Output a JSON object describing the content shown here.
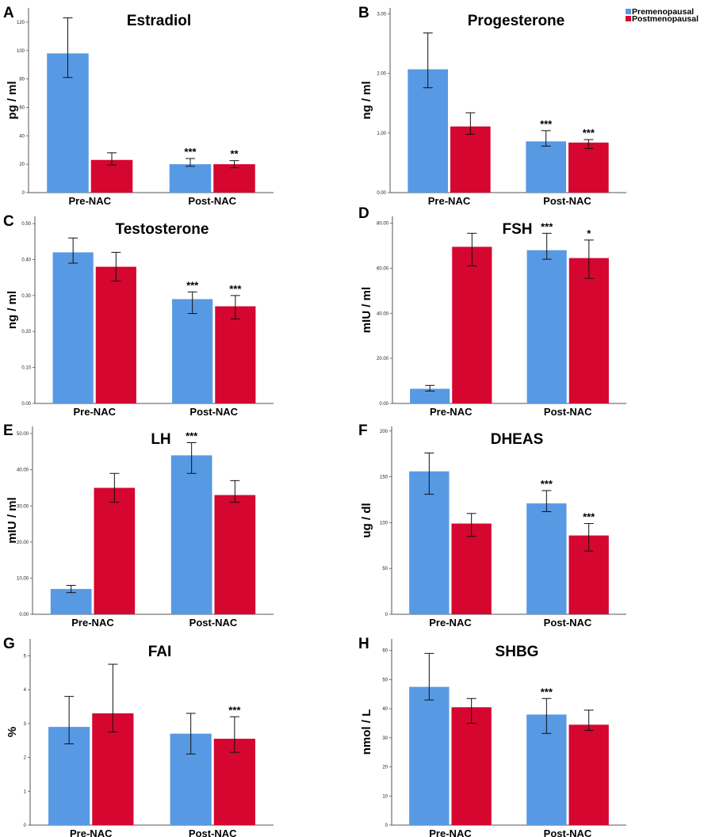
{
  "legend": {
    "entries": [
      {
        "label": "Premenopausal",
        "color": "#5899e4"
      },
      {
        "label": "Postmenopausal",
        "color": "#d5062f"
      }
    ]
  },
  "chart_data": [
    {
      "panel": "A",
      "type": "bar",
      "title": "Estradiol",
      "ylabel": "pg / ml",
      "categories": [
        "Pre-NAC",
        "Post-NAC"
      ],
      "ylim": [
        0,
        130
      ],
      "ticks": [
        "0",
        "20",
        "40",
        "60",
        "80",
        "100",
        "120"
      ],
      "tick_values": [
        0,
        20,
        40,
        60,
        80,
        100,
        120
      ],
      "series": [
        {
          "name": "Premenopausal",
          "values": [
            98,
            20
          ],
          "err_low": [
            81,
            18.5
          ],
          "err_high": [
            123,
            24
          ],
          "sig": [
            "",
            "***"
          ]
        },
        {
          "name": "Postmenopausal",
          "values": [
            23,
            20
          ],
          "err_low": [
            19.5,
            17.5
          ],
          "err_high": [
            28,
            22.5
          ],
          "sig": [
            "",
            "**"
          ]
        }
      ]
    },
    {
      "panel": "B",
      "type": "bar",
      "title": "Progesterone",
      "ylabel": "ng / ml",
      "categories": [
        "Pre-NAC",
        "Post-NAC"
      ],
      "ylim": [
        0,
        3.1
      ],
      "ticks": [
        "0.00",
        "1.00",
        "2.00",
        "3.00"
      ],
      "tick_values": [
        0,
        1,
        2,
        3
      ],
      "series": [
        {
          "name": "Premenopausal",
          "values": [
            2.07,
            0.86
          ],
          "err_low": [
            1.76,
            0.78
          ],
          "err_high": [
            2.68,
            1.04
          ],
          "sig": [
            "",
            "***"
          ]
        },
        {
          "name": "Postmenopausal",
          "values": [
            1.11,
            0.84
          ],
          "err_low": [
            0.98,
            0.74
          ],
          "err_high": [
            1.34,
            0.89
          ],
          "sig": [
            "",
            "***"
          ]
        }
      ]
    },
    {
      "panel": "C",
      "type": "bar",
      "title": "Testosterone",
      "ylabel": "ng / ml",
      "categories": [
        "Pre-NAC",
        "Post-NAC"
      ],
      "ylim": [
        0,
        0.52
      ],
      "ticks": [
        "0.00",
        "0.10",
        "0.20",
        "0.30",
        "0.40",
        "0.50"
      ],
      "tick_values": [
        0,
        0.1,
        0.2,
        0.3,
        0.4,
        0.5
      ],
      "series": [
        {
          "name": "Premenopausal",
          "values": [
            0.42,
            0.29
          ],
          "err_low": [
            0.39,
            0.25
          ],
          "err_high": [
            0.46,
            0.31
          ],
          "sig": [
            "",
            "***"
          ]
        },
        {
          "name": "Postmenopausal",
          "values": [
            0.38,
            0.27
          ],
          "err_low": [
            0.34,
            0.235
          ],
          "err_high": [
            0.42,
            0.3
          ],
          "sig": [
            "",
            "***"
          ]
        }
      ]
    },
    {
      "panel": "D",
      "type": "bar",
      "title": "FSH",
      "ylabel": "mIU / ml",
      "categories": [
        "Pre-NAC",
        "Post-NAC"
      ],
      "ylim": [
        0,
        83
      ],
      "ticks": [
        "0.00",
        "20.00",
        "40.00",
        "60.00",
        "80.00"
      ],
      "tick_values": [
        0,
        20,
        40,
        60,
        80
      ],
      "series": [
        {
          "name": "Premenopausal",
          "values": [
            6.5,
            68
          ],
          "err_low": [
            5.5,
            64
          ],
          "err_high": [
            8,
            75.5
          ],
          "sig": [
            "",
            "***"
          ]
        },
        {
          "name": "Postmenopausal",
          "values": [
            69.5,
            64.5
          ],
          "err_low": [
            61,
            55.5
          ],
          "err_high": [
            75.5,
            72.5
          ],
          "sig": [
            "",
            "*"
          ]
        }
      ]
    },
    {
      "panel": "E",
      "type": "bar",
      "title": "LH",
      "ylabel": "mIU / ml",
      "categories": [
        "Pre-NAC",
        "Post-NAC"
      ],
      "ylim": [
        0,
        52
      ],
      "ticks": [
        "0.00",
        "10.00",
        "20.00",
        "30.00",
        "40.00",
        "50.00"
      ],
      "tick_values": [
        0,
        10,
        20,
        30,
        40,
        50
      ],
      "series": [
        {
          "name": "Premenopausal",
          "values": [
            7,
            44
          ],
          "err_low": [
            6,
            39
          ],
          "err_high": [
            8,
            47.5
          ],
          "sig": [
            "",
            "***"
          ]
        },
        {
          "name": "Postmenopausal",
          "values": [
            35,
            33
          ],
          "err_low": [
            31,
            31
          ],
          "err_high": [
            39,
            37
          ],
          "sig": [
            "",
            ""
          ]
        }
      ]
    },
    {
      "panel": "F",
      "type": "bar",
      "title": "DHEAS",
      "ylabel": "ug / dl",
      "categories": [
        "Pre-NAC",
        "Post-NAC"
      ],
      "ylim": [
        0,
        205
      ],
      "ticks": [
        "0",
        "50",
        "100",
        "150",
        "200"
      ],
      "tick_values": [
        0,
        50,
        100,
        150,
        200
      ],
      "series": [
        {
          "name": "Premenopausal",
          "values": [
            156,
            121
          ],
          "err_low": [
            131,
            112
          ],
          "err_high": [
            176,
            135
          ],
          "sig": [
            "",
            "***"
          ]
        },
        {
          "name": "Postmenopausal",
          "values": [
            99,
            86
          ],
          "err_low": [
            85,
            69
          ],
          "err_high": [
            110,
            99
          ],
          "sig": [
            "",
            "***"
          ]
        }
      ]
    },
    {
      "panel": "G",
      "type": "bar",
      "title": "FAI",
      "ylabel": "%",
      "categories": [
        "Pre-NAC",
        "Post-NAC"
      ],
      "ylim": [
        0,
        5.5
      ],
      "ticks": [
        "0",
        "1",
        "2",
        "3",
        "4",
        "5"
      ],
      "tick_values": [
        0,
        1,
        2,
        3,
        4,
        5
      ],
      "series": [
        {
          "name": "Premenopausal",
          "values": [
            2.9,
            2.7
          ],
          "err_low": [
            2.4,
            2.1
          ],
          "err_high": [
            3.8,
            3.3
          ],
          "sig": [
            "",
            ""
          ]
        },
        {
          "name": "Postmenopausal",
          "values": [
            3.3,
            2.55
          ],
          "err_low": [
            2.75,
            2.15
          ],
          "err_high": [
            4.75,
            3.2
          ],
          "sig": [
            "",
            "***"
          ]
        }
      ]
    },
    {
      "panel": "H",
      "type": "bar",
      "title": "SHBG",
      "ylabel": "nmol / L",
      "categories": [
        "Pre-NAC",
        "Post-NAC"
      ],
      "ylim": [
        0,
        64
      ],
      "ticks": [
        "0",
        "10",
        "20",
        "30",
        "40",
        "50",
        "60"
      ],
      "tick_values": [
        0,
        10,
        20,
        30,
        40,
        50,
        60
      ],
      "series": [
        {
          "name": "Premenopausal",
          "values": [
            47.5,
            38
          ],
          "err_low": [
            43,
            31.5
          ],
          "err_high": [
            59,
            43.5
          ],
          "sig": [
            "",
            "***"
          ]
        },
        {
          "name": "Postmenopausal",
          "values": [
            40.5,
            34.5
          ],
          "err_low": [
            35,
            32.5
          ],
          "err_high": [
            43.5,
            39.5
          ],
          "sig": [
            "",
            ""
          ]
        }
      ]
    }
  ]
}
